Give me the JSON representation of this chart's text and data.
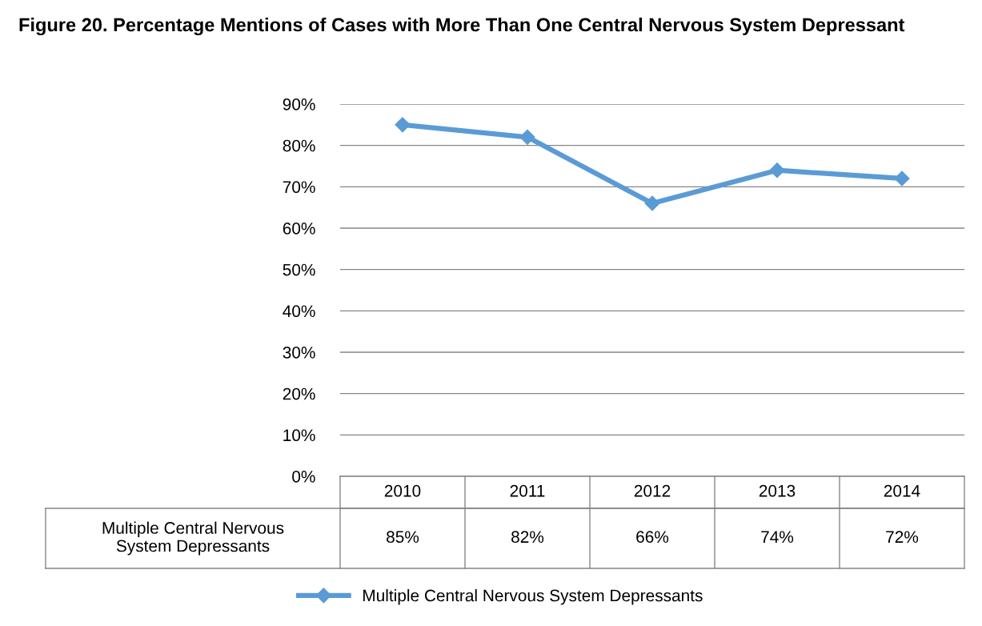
{
  "chart_data": {
    "type": "line",
    "title": "Figure 20. Percentage Mentions of Cases with More Than One Central Nervous System Depressant",
    "categories": [
      "2010",
      "2011",
      "2012",
      "2013",
      "2014"
    ],
    "series": [
      {
        "name": "Multiple Central Nervous System Depressants",
        "color": "#5b9bd5",
        "values": [
          85,
          82,
          66,
          74,
          72
        ],
        "value_labels": [
          "85%",
          "82%",
          "66%",
          "74%",
          "72%"
        ]
      }
    ],
    "ylim": [
      0,
      90
    ],
    "yticks": [
      {
        "value": 0,
        "label": "0%"
      },
      {
        "value": 10,
        "label": "10%"
      },
      {
        "value": 20,
        "label": "20%"
      },
      {
        "value": 30,
        "label": "30%"
      },
      {
        "value": 40,
        "label": "40%"
      },
      {
        "value": 50,
        "label": "50%"
      },
      {
        "value": 60,
        "label": "60%"
      },
      {
        "value": 70,
        "label": "70%"
      },
      {
        "value": 80,
        "label": "80%"
      },
      {
        "value": 90,
        "label": "90%"
      }
    ],
    "grid": "y",
    "legend": "bottom",
    "marker": "diamond",
    "line_style": "solid"
  }
}
